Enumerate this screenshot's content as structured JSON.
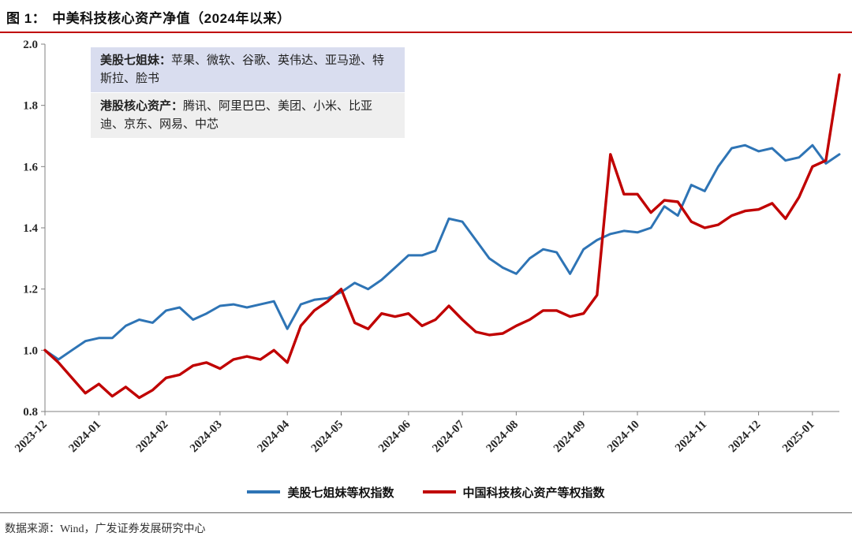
{
  "figure": {
    "label": "图 1：",
    "title": "中美科技核心资产净值（2024年以来）",
    "source": "数据来源：Wind，广发证券发展研究中心",
    "accent_color": "#C00000"
  },
  "annotations": {
    "us_box": {
      "label": "美股七姐妹：",
      "text": "苹果、微软、谷歌、英伟达、亚马逊、特斯拉、脸书",
      "bg": "#d9ddef"
    },
    "hk_box": {
      "label": "港股核心资产：",
      "text": "腾讯、阿里巴巴、美团、小米、比亚迪、京东、网易、中芯",
      "bg": "#efefef"
    }
  },
  "chart_data": {
    "type": "line",
    "title": "中美科技核心资产净值（2024年以来）",
    "grid": false,
    "legend_position": "bottom",
    "ylim": [
      0.8,
      2.0
    ],
    "yticks": [
      0.8,
      1.0,
      1.2,
      1.4,
      1.6,
      1.8,
      2.0
    ],
    "x_tick_labels": [
      "2023-12",
      "2024-01",
      "2024-02",
      "2024-03",
      "2024-04",
      "2024-05",
      "2024-06",
      "2024-07",
      "2024-08",
      "2024-09",
      "2024-10",
      "2024-11",
      "2024-12",
      "2025-01"
    ],
    "x_tick_indices": [
      0,
      4,
      9,
      13,
      18,
      22,
      27,
      31,
      35,
      40,
      44,
      49,
      53,
      57
    ],
    "series": [
      {
        "name": "美股七姐妹等权指数",
        "color": "#2E74B5",
        "values": [
          1.0,
          0.97,
          1.0,
          1.03,
          1.04,
          1.04,
          1.08,
          1.1,
          1.09,
          1.13,
          1.14,
          1.1,
          1.12,
          1.145,
          1.15,
          1.14,
          1.15,
          1.16,
          1.07,
          1.15,
          1.165,
          1.17,
          1.19,
          1.22,
          1.2,
          1.23,
          1.27,
          1.31,
          1.31,
          1.325,
          1.43,
          1.42,
          1.36,
          1.3,
          1.27,
          1.25,
          1.3,
          1.33,
          1.32,
          1.25,
          1.33,
          1.36,
          1.38,
          1.39,
          1.385,
          1.4,
          1.47,
          1.44,
          1.54,
          1.52,
          1.6,
          1.66,
          1.67,
          1.65,
          1.66,
          1.62,
          1.63,
          1.67,
          1.61,
          1.64
        ]
      },
      {
        "name": "中国科技核心资产等权指数",
        "color": "#C00000",
        "values": [
          1.0,
          0.96,
          0.91,
          0.86,
          0.89,
          0.85,
          0.88,
          0.845,
          0.87,
          0.91,
          0.92,
          0.95,
          0.96,
          0.94,
          0.97,
          0.98,
          0.97,
          1.0,
          0.96,
          1.08,
          1.13,
          1.16,
          1.2,
          1.09,
          1.07,
          1.12,
          1.11,
          1.12,
          1.08,
          1.1,
          1.145,
          1.1,
          1.06,
          1.05,
          1.055,
          1.08,
          1.1,
          1.13,
          1.13,
          1.11,
          1.12,
          1.18,
          1.64,
          1.51,
          1.51,
          1.45,
          1.49,
          1.485,
          1.42,
          1.4,
          1.41,
          1.44,
          1.455,
          1.46,
          1.48,
          1.43,
          1.5,
          1.6,
          1.62,
          1.9
        ]
      }
    ]
  }
}
